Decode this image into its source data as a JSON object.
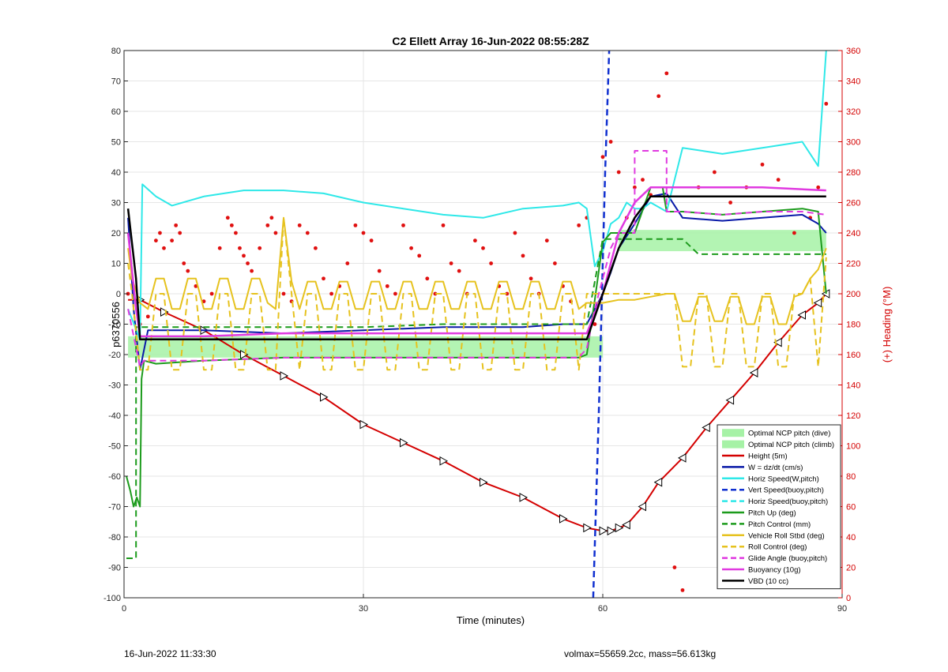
{
  "chart_data": {
    "type": "line",
    "title": "C2 Ellett Array 16-Jun-2022 08:55:28Z",
    "xlabel": "Time (minutes)",
    "ylabel": "p6370556",
    "y2label": "(+) Heading (°M)",
    "xlim": [
      0,
      90
    ],
    "ylim": [
      -100,
      80
    ],
    "y2lim": [
      0,
      360
    ],
    "xticks": [
      0,
      30,
      60,
      90
    ],
    "yticks": [
      -100,
      -90,
      -80,
      -70,
      -60,
      -50,
      -40,
      -30,
      -20,
      -10,
      0,
      10,
      20,
      30,
      40,
      50,
      60,
      70,
      80
    ],
    "y2ticks": [
      0,
      20,
      40,
      60,
      80,
      100,
      120,
      140,
      160,
      180,
      200,
      220,
      240,
      260,
      280,
      300,
      320,
      340,
      360
    ],
    "grid": true,
    "legend_position": "bottom-right",
    "bands": [
      {
        "name": "Optimal NCP pitch (dive)",
        "x": [
          0.5,
          60
        ],
        "y": [
          -21,
          -14
        ],
        "color": "#a6f2a6"
      },
      {
        "name": "Optimal NCP pitch (climb)",
        "x": [
          62,
          88
        ],
        "y": [
          14,
          21
        ],
        "color": "#a6f2a6"
      }
    ],
    "series": [
      {
        "name": "Height (5m)",
        "color": "#d40000",
        "style": "solid",
        "width": 2,
        "x": [
          0.5,
          2,
          5,
          10,
          15,
          20,
          25,
          30,
          35,
          40,
          45,
          50,
          55,
          58,
          60,
          61,
          62,
          63,
          65,
          67,
          70,
          73,
          76,
          79,
          82,
          85,
          87,
          88
        ],
        "y": [
          -2,
          -2,
          -6,
          -12,
          -20,
          -27,
          -34,
          -43,
          -49,
          -55,
          -62,
          -67,
          -74,
          -77,
          -78,
          -78,
          -77,
          -76,
          -70,
          -62,
          -54,
          -44,
          -35,
          -26,
          -16,
          -7,
          -3,
          0
        ],
        "markers": "triangle"
      },
      {
        "name": "W = dz/dt (cm/s)",
        "color": "#0a1aa8",
        "style": "solid",
        "width": 2,
        "x": [
          0.5,
          1.2,
          2,
          3,
          5,
          10,
          20,
          30,
          40,
          50,
          55,
          58,
          59,
          60,
          61,
          62,
          64,
          66,
          68,
          70,
          75,
          80,
          85,
          87,
          88
        ],
        "y": [
          25,
          -5,
          -25,
          -12,
          -12,
          -12,
          -13,
          -12,
          -11,
          -11,
          -10,
          -10,
          -5,
          0,
          7,
          15,
          23,
          32,
          33,
          25,
          24,
          25,
          26,
          23,
          20
        ]
      },
      {
        "name": "Horiz Speed(W,pitch)",
        "color": "#2ee8e8",
        "style": "solid",
        "width": 2,
        "x": [
          0.5,
          2,
          2.3,
          4,
          6,
          10,
          15,
          20,
          25,
          30,
          35,
          40,
          45,
          50,
          55,
          57,
          58,
          59,
          60,
          61,
          62,
          63,
          64,
          65,
          66,
          68,
          70,
          75,
          80,
          85,
          87,
          88
        ],
        "y": [
          -5,
          -15,
          36,
          32,
          29,
          32,
          34,
          34,
          33,
          30,
          28,
          26,
          25,
          28,
          29,
          30,
          28,
          9,
          14,
          23,
          25,
          30,
          28,
          28,
          30,
          27,
          48,
          46,
          48,
          50,
          42,
          80
        ]
      },
      {
        "name": "Vert Speed(buoy,pitch)",
        "color": "#1030d0",
        "style": "dashed",
        "width": 2.5,
        "x": [
          58.8,
          59.5,
          60.3,
          60.8
        ],
        "y": [
          -100,
          -40,
          40,
          80
        ]
      },
      {
        "name": "Horiz Speed(buoy,pitch)",
        "color": "#2ee8e8",
        "style": "dashed",
        "width": 2,
        "x": [],
        "y": []
      },
      {
        "name": "Pitch Up (deg)",
        "color": "#1c9b1c",
        "style": "solid",
        "width": 2,
        "x": [
          0.3,
          0.8,
          1.2,
          1.6,
          2.0,
          2.2,
          2.5,
          4,
          10,
          20,
          30,
          40,
          50,
          57,
          58,
          59,
          60,
          61,
          62,
          64,
          66,
          67.5,
          68,
          70,
          75,
          80,
          85,
          87,
          88
        ],
        "y": [
          -60,
          -65,
          -70,
          -67,
          -70,
          -28,
          -22,
          -23,
          -22,
          -21,
          -21,
          -21,
          -21,
          -21,
          -20,
          -2,
          17,
          20,
          20,
          20,
          35,
          35,
          27,
          27,
          26,
          27,
          28,
          27,
          0
        ]
      },
      {
        "name": "Pitch Control (mm)",
        "color": "#1c9b1c",
        "style": "dashed",
        "width": 2,
        "x": [
          0.3,
          1.5,
          1.5,
          5,
          10,
          20,
          30,
          40,
          50,
          58,
          60,
          62,
          65,
          70,
          72,
          80,
          88
        ],
        "y": [
          -87,
          -87,
          -11,
          -11,
          -11,
          -11,
          -11,
          -10,
          -10,
          -10,
          18,
          18,
          18,
          18,
          13,
          13,
          13
        ]
      },
      {
        "name": "Vehicle Roll Stbd (deg)",
        "color": "#e6c21e",
        "style": "solid",
        "width": 2,
        "x": [
          0.5,
          1,
          2,
          3,
          4,
          5,
          6,
          7,
          8,
          9,
          10,
          11,
          12,
          13,
          14,
          15,
          16,
          17,
          18,
          19,
          20,
          21,
          22,
          23,
          24,
          25,
          26,
          27,
          28,
          29,
          30,
          31,
          32,
          33,
          34,
          35,
          36,
          37,
          38,
          39,
          40,
          41,
          42,
          43,
          44,
          45,
          46,
          47,
          48,
          49,
          50,
          51,
          52,
          53,
          54,
          55,
          56,
          57,
          58,
          60,
          62,
          64,
          66,
          68,
          69,
          70,
          71,
          72,
          73,
          74,
          75,
          76,
          77,
          78,
          79,
          80,
          81,
          82,
          83,
          84,
          85,
          86,
          87,
          88
        ],
        "y": [
          15,
          5,
          -3,
          -5,
          5,
          5,
          -5,
          -5,
          5,
          5,
          -5,
          -5,
          5,
          5,
          -5,
          -5,
          5,
          5,
          -3,
          -5,
          25,
          4,
          -5,
          4,
          4,
          -5,
          -5,
          4,
          4,
          -5,
          -5,
          4,
          4,
          -5,
          -5,
          4,
          4,
          -5,
          -5,
          4,
          4,
          -5,
          -5,
          4,
          4,
          -5,
          -5,
          4,
          4,
          -5,
          -5,
          4,
          4,
          -5,
          -5,
          4,
          4,
          -5,
          -3,
          -3,
          -2,
          -2,
          -1,
          0,
          0,
          -9,
          -9,
          -1,
          -1,
          -9,
          -9,
          -1,
          -1,
          -10,
          -10,
          -1,
          -1,
          -10,
          -10,
          -1,
          0,
          5,
          8,
          15
        ]
      },
      {
        "name": "Roll Control (deg)",
        "color": "#e6c21e",
        "style": "dashed",
        "width": 2,
        "x": [
          0.5,
          1,
          2,
          3,
          4,
          5,
          6,
          7,
          8,
          9,
          10,
          11,
          12,
          13,
          14,
          15,
          16,
          17,
          18,
          19,
          20,
          21,
          22,
          23,
          24,
          25,
          26,
          27,
          28,
          29,
          30,
          31,
          32,
          33,
          34,
          35,
          36,
          37,
          38,
          39,
          40,
          41,
          42,
          43,
          44,
          45,
          46,
          47,
          48,
          49,
          50,
          51,
          52,
          53,
          54,
          55,
          56,
          57,
          58,
          60,
          62,
          64,
          66,
          68,
          69,
          70,
          71,
          72,
          73,
          74,
          75,
          76,
          77,
          78,
          79,
          80,
          81,
          82,
          83,
          84,
          85,
          86,
          87,
          88
        ],
        "y": [
          10,
          0,
          -25,
          -25,
          0,
          0,
          -25,
          -25,
          0,
          0,
          -25,
          -25,
          0,
          0,
          -25,
          -25,
          0,
          0,
          -25,
          -25,
          25,
          0,
          -25,
          0,
          0,
          -25,
          -25,
          0,
          0,
          -25,
          -25,
          0,
          0,
          -25,
          -25,
          0,
          0,
          -25,
          -25,
          0,
          0,
          -25,
          -25,
          0,
          0,
          -25,
          -25,
          0,
          0,
          -25,
          -25,
          0,
          0,
          -25,
          -25,
          0,
          0,
          -25,
          0,
          0,
          0,
          0,
          0,
          0,
          0,
          -24,
          -24,
          0,
          0,
          -24,
          -24,
          0,
          0,
          -24,
          -24,
          0,
          0,
          -24,
          -24,
          0,
          0,
          5,
          -24,
          12
        ]
      },
      {
        "name": "Glide Angle (buoy,pitch)",
        "color": "#e03ae0",
        "style": "dashed",
        "width": 2,
        "x": [
          0.5,
          2,
          2.5,
          10,
          20,
          30,
          40,
          50,
          57,
          58,
          59,
          60,
          61,
          62,
          64,
          64,
          68,
          68,
          70,
          75,
          80,
          85,
          88
        ],
        "y": [
          -5,
          -24,
          -22,
          -22,
          -21,
          -21,
          -21,
          -21,
          -21,
          -18,
          -5,
          5,
          15,
          20,
          20,
          47,
          47,
          27,
          27,
          26,
          27,
          27,
          26
        ]
      },
      {
        "name": "Buoyancy (10g)",
        "color": "#e03ae0",
        "style": "solid",
        "width": 2.5,
        "x": [
          0.5,
          1.5,
          2,
          5,
          10,
          20,
          30,
          40,
          50,
          58,
          60,
          62,
          64,
          66,
          68,
          70,
          80,
          88
        ],
        "y": [
          20,
          -5,
          -14,
          -14,
          -14,
          -13,
          -13,
          -13,
          -13,
          -13,
          0,
          20,
          30,
          35,
          35,
          35,
          35,
          34
        ]
      },
      {
        "name": "VBD (10 cc)",
        "color": "#000000",
        "style": "solid",
        "width": 2.5,
        "x": [
          0.5,
          1.5,
          2,
          10,
          20,
          30,
          40,
          50,
          58,
          60,
          62,
          64,
          66,
          68,
          70,
          80,
          88
        ],
        "y": [
          28,
          5,
          -15,
          -15,
          -15,
          -15,
          -15,
          -15,
          -15,
          0,
          15,
          25,
          32,
          32,
          32,
          32,
          32
        ]
      }
    ],
    "heading_points": {
      "name": "(+) Heading (°M)",
      "color": "#e01010",
      "x": [
        0.5,
        2,
        3,
        4,
        4.5,
        5,
        6,
        6.5,
        7,
        7.5,
        8,
        9,
        10,
        11,
        12,
        13,
        13.5,
        14,
        14.5,
        15,
        15.5,
        16,
        17,
        18,
        18.5,
        19,
        20,
        21,
        22,
        23,
        24,
        25,
        26,
        27,
        28,
        29,
        30,
        31,
        32,
        33,
        34,
        35,
        36,
        37,
        38,
        39,
        40,
        41,
        42,
        43,
        44,
        45,
        46,
        47,
        48,
        49,
        50,
        51,
        52,
        53,
        54,
        55,
        56,
        57,
        58,
        59,
        60,
        61,
        62,
        63,
        64,
        65,
        66,
        67,
        68,
        69,
        70,
        72,
        74,
        76,
        78,
        80,
        82,
        84,
        86,
        87,
        88
      ],
      "y": [
        200,
        180,
        185,
        235,
        240,
        230,
        235,
        245,
        240,
        220,
        215,
        205,
        195,
        200,
        230,
        250,
        245,
        240,
        230,
        225,
        220,
        215,
        230,
        245,
        250,
        240,
        200,
        195,
        245,
        240,
        230,
        210,
        200,
        205,
        220,
        245,
        240,
        235,
        215,
        205,
        200,
        245,
        230,
        225,
        210,
        200,
        245,
        220,
        215,
        200,
        235,
        230,
        220,
        205,
        200,
        240,
        225,
        210,
        200,
        235,
        220,
        205,
        195,
        245,
        250,
        180,
        290,
        300,
        280,
        250,
        270,
        275,
        265,
        330,
        345,
        20,
        5,
        270,
        280,
        260,
        270,
        285,
        275,
        240,
        250,
        270,
        325
      ]
    }
  },
  "footer": {
    "timestamp": "16-Jun-2022 11:33:30",
    "vol_info": "volmax=55659.2cc, mass=56.613kg"
  }
}
